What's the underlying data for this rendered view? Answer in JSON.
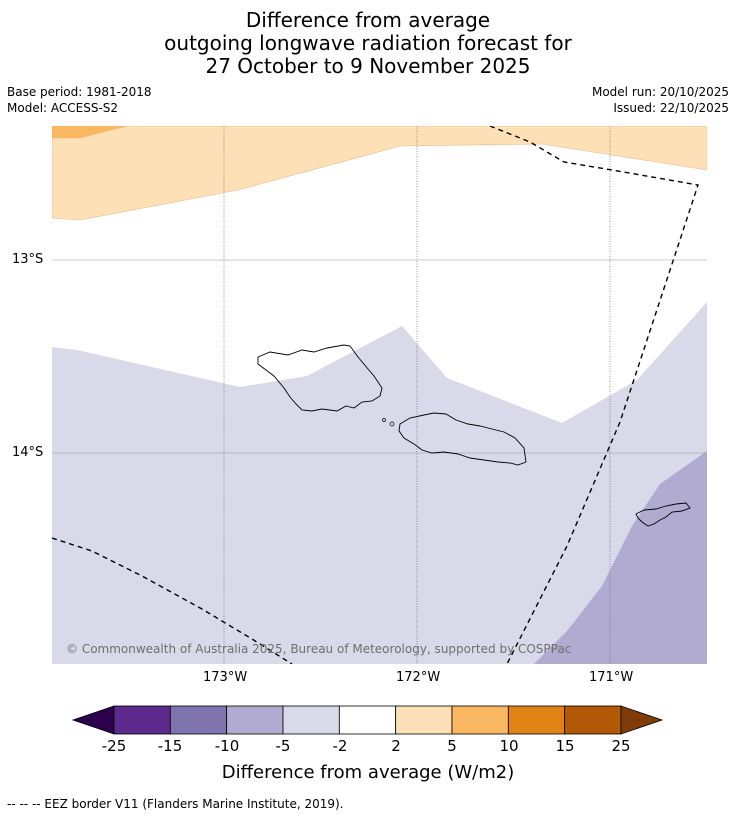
{
  "title": {
    "line1": "Difference from average",
    "line2": "outgoing longwave radiation forecast for",
    "line3": "27 October to 9 November 2025"
  },
  "meta": {
    "base_period": "Base period: 1981-2018",
    "model": "Model: ACCESS-S2",
    "model_run": "Model run: 20/10/2025",
    "issued": "Issued: 22/10/2025"
  },
  "map": {
    "lat_labels": [
      "13°S",
      "14°S"
    ],
    "lon_labels": [
      "173°W",
      "172°W",
      "171°W"
    ],
    "copyright": "© Commonwealth of Australia 2025, Bureau of Meteorology, supported by COSPPac"
  },
  "colorbar": {
    "title": "Difference from average (W/m2)",
    "ticks": [
      "-25",
      "-15",
      "-10",
      "-5",
      "-2",
      "2",
      "5",
      "10",
      "15",
      "25"
    ],
    "colors": [
      "#5b2a8c",
      "#8074ae",
      "#b1abd2",
      "#d9d9ea",
      "#ffffff",
      "#fee0b6",
      "#f9b761",
      "#e08214",
      "#b35806"
    ],
    "low_extend_color": "#2d004b",
    "high_extend_color": "#7f3b08"
  },
  "footer": "--  --  -- EEZ border V11 (Flanders Marine Institute, 2019)."
}
